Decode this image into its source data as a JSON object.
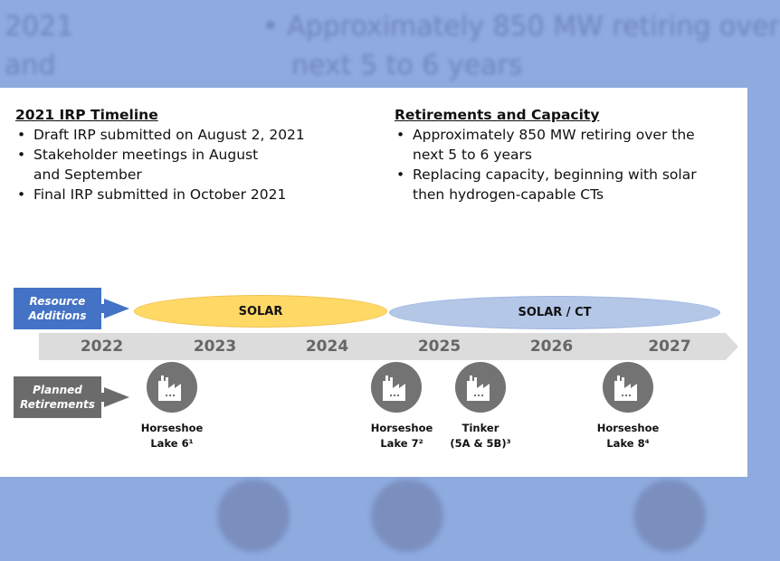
{
  "background": {
    "left_lines": [
      "2021",
      "and"
    ],
    "right_lines": [
      "Approximately 850 MW retiring over",
      "next 5 to 6 years"
    ]
  },
  "left_section": {
    "title": "2021 IRP Timeline",
    "bullets": [
      "Draft IRP submitted on August 2, 2021",
      "Stakeholder meetings in August and September",
      "Final IRP submitted in October 2021"
    ]
  },
  "right_section": {
    "title": "Retirements and Capacity",
    "bullets": [
      "Approximately 850 MW retiring over the next 5 to 6 years",
      "Replacing capacity, beginning with solar then hydrogen-capable CTs"
    ]
  },
  "resource_additions": {
    "label": "Resource Additions",
    "phases": [
      "SOLAR",
      "SOLAR / CT"
    ]
  },
  "years": [
    "2022",
    "2023",
    "2024",
    "2025",
    "2026",
    "2027"
  ],
  "planned_retirements": {
    "label": "Planned Retirements",
    "plants": [
      {
        "name": "Horseshoe",
        "sub": "Lake 6¹"
      },
      {
        "name": "Horseshoe",
        "sub": "Lake 7²"
      },
      {
        "name": "Tinker",
        "sub": "(5A & 5B)³"
      },
      {
        "name": "Horseshoe",
        "sub": "Lake 8⁴"
      }
    ]
  },
  "colors": {
    "blue": "#4472c4",
    "gray": "#6b6b6b",
    "solar": "#ffd966",
    "solar_ct": "#b4c7e7"
  }
}
